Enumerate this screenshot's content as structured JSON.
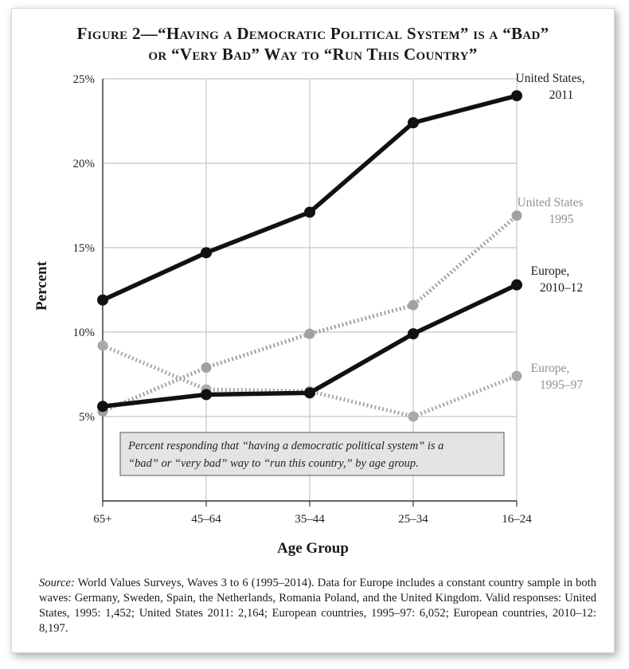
{
  "figure": {
    "title_line1": "Figure 2—“Having a Democratic Political System” is a “Bad”",
    "title_line2": "or “Very Bad” Way to “Run This Country”",
    "note_line1": "Percent responding that “having a democratic political system” is a",
    "note_line2": "“bad” or “very bad” way to “run this country,” by age group.",
    "source_label": "Source:",
    "source_text": "World Values Surveys, Waves 3 to 6 (1995–2014). Data for Europe includes a constant country sample in both waves: Germany, Sweden, Spain, the Netherlands, Romania Poland, and the United Kingdom. Valid responses: United States, 1995: 1,452; United States 2011: 2,164; European countries, 1995–97: 6,052; European countries, 2010–12: 8,197."
  },
  "chart_data": {
    "type": "line",
    "xlabel": "Age Group",
    "ylabel": "Percent",
    "categories": [
      "65+",
      "45–64",
      "35–44",
      "25–34",
      "16–24"
    ],
    "ylim": [
      0,
      25
    ],
    "yticks": [
      "5%",
      "10%",
      "15%",
      "20%",
      "25%"
    ],
    "ytick_values": [
      5,
      10,
      15,
      20,
      25
    ],
    "grid": true,
    "series": [
      {
        "label_line1": "United States,",
        "label_line2": "2011",
        "values": [
          11.9,
          14.7,
          17.1,
          22.4,
          24.0
        ],
        "color": "#111111",
        "style": "solid"
      },
      {
        "label_line1": "United States",
        "label_line2": "1995",
        "values": [
          5.3,
          7.9,
          9.9,
          11.6,
          16.9
        ],
        "color": "#9da3a1",
        "style": "dotted"
      },
      {
        "label_line1": "Europe,",
        "label_line2": "2010–12",
        "values": [
          5.6,
          6.3,
          6.4,
          9.9,
          12.8
        ],
        "color": "#111111",
        "style": "solid"
      },
      {
        "label_line1": "Europe,",
        "label_line2": "1995–97",
        "values": [
          9.2,
          6.6,
          6.5,
          5.0,
          7.4
        ],
        "color": "#a6aaa8",
        "style": "dotted"
      }
    ]
  }
}
